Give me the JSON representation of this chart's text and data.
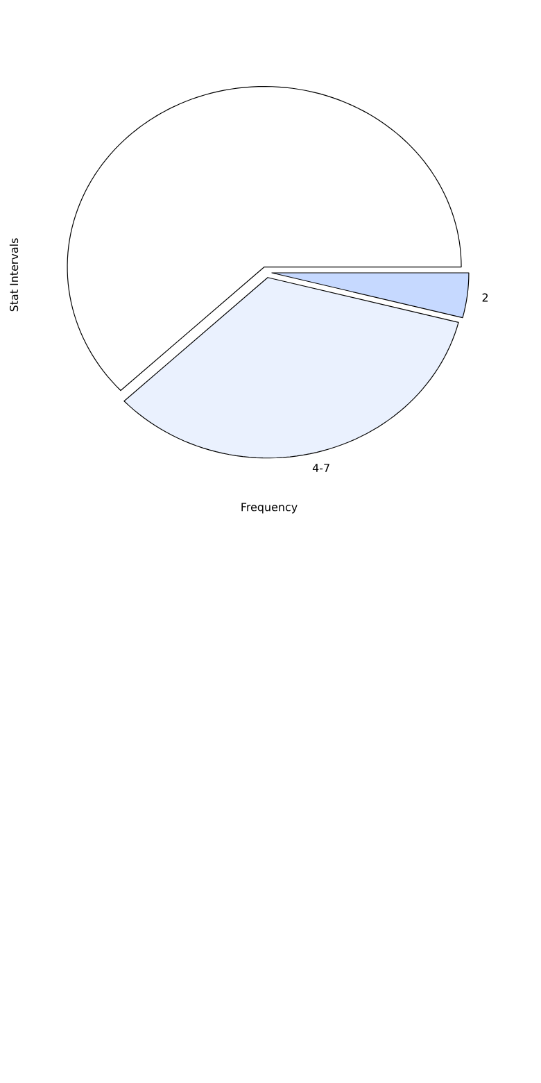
{
  "chart_data": {
    "type": "pie",
    "xlabel": "Frequency",
    "ylabel": "Stat Intervals",
    "categories": [
      "2",
      "4-7",
      null
    ],
    "values": [
      4,
      34,
      62
    ],
    "colors": [
      "#c6d9ff",
      "#eaf1fe",
      "#ffffff"
    ]
  }
}
